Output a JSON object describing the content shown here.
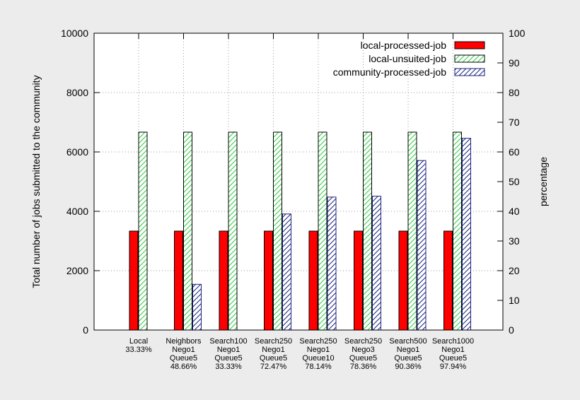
{
  "chart_data": {
    "type": "bar",
    "categories": [
      [
        "Local",
        "33.33%"
      ],
      [
        "Neighbors",
        "Nego1",
        "Queue5",
        "48.66%"
      ],
      [
        "Search100",
        "Nego1",
        "Queue5",
        "33.33%"
      ],
      [
        "Search250",
        "Nego1",
        "Queue5",
        "72.47%"
      ],
      [
        "Search250",
        "Nego1",
        "Queue10",
        "78.14%"
      ],
      [
        "Search250",
        "Nego3",
        "Queue5",
        "78.36%"
      ],
      [
        "Search500",
        "Nego1",
        "Queue5",
        "90.36%"
      ],
      [
        "Search1000",
        "Nego1",
        "Queue5",
        "97.94%"
      ]
    ],
    "series": [
      {
        "name": "local-processed-job",
        "values": [
          3333,
          3333,
          3333,
          3333,
          3333,
          3333,
          3333,
          3333
        ],
        "color": "#ff0000",
        "pattern": "solid"
      },
      {
        "name": "local-unsuited-job",
        "values": [
          6667,
          6667,
          6667,
          6667,
          6667,
          6667,
          6667,
          6667
        ],
        "color": "#00bb00",
        "pattern": "hatch-green"
      },
      {
        "name": "community-processed-job",
        "values": [
          0,
          1540,
          0,
          3910,
          4480,
          4510,
          5710,
          6460
        ],
        "color": "#1a237e",
        "pattern": "hatch-blue"
      }
    ],
    "ylabel": "Total number of jobs submitted to the community",
    "y2label": "percentage",
    "ylim": [
      0,
      10000
    ],
    "y2lim": [
      0,
      100
    ],
    "yticks": [
      0,
      2000,
      4000,
      6000,
      8000,
      10000
    ],
    "y2ticks": [
      0,
      10,
      20,
      30,
      40,
      50,
      60,
      70,
      80,
      90,
      100
    ],
    "grid": true,
    "legend_position": "top-right"
  }
}
